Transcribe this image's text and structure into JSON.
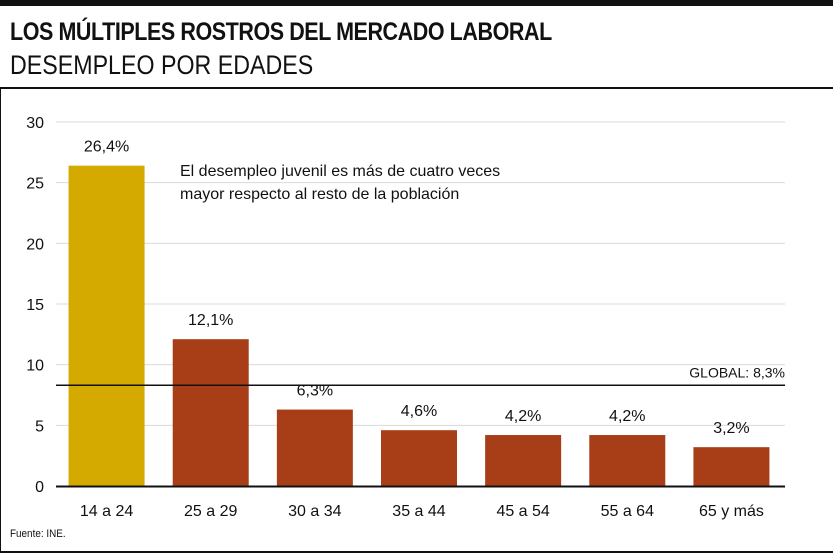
{
  "header": {
    "title": "LOS MÚLTIPLES ROSTROS DEL MERCADO LABORAL",
    "subtitle": "DESEMPLEO POR EDADES"
  },
  "footer": {
    "source": "Fuente: INE."
  },
  "colors": {
    "highlight": "#D4A900",
    "bar": "#A83E18",
    "grid": "#d9d9d9",
    "text": "#111111"
  },
  "chart_data": {
    "type": "bar",
    "categories": [
      "14 a 24",
      "25 a 29",
      "30 a 34",
      "35 a 44",
      "45 a 54",
      "55 a 64",
      "65 y más"
    ],
    "values": [
      26.4,
      12.1,
      6.3,
      4.6,
      4.2,
      4.2,
      3.2
    ],
    "value_labels": [
      "26,4%",
      "12,1%",
      "6,3%",
      "4,6%",
      "4,2%",
      "4,2%",
      "3,2%"
    ],
    "highlight_index": 0,
    "ylim": [
      0,
      30
    ],
    "yticks": [
      0,
      5,
      10,
      15,
      20,
      25,
      30
    ],
    "grid": true,
    "reference_line": {
      "value": 8.3,
      "label": "GLOBAL: 8,3%"
    },
    "annotation": {
      "lines": [
        "El desempleo juvenil es más de cuatro veces",
        "mayor respecto al resto de la población"
      ]
    }
  }
}
